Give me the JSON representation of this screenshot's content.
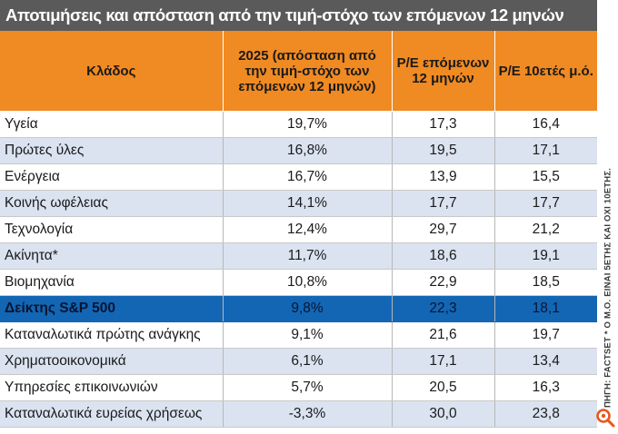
{
  "title": "Αποτιμήσεις και απόσταση από την τιμή-στόχο των επόμενων 12 μηνών",
  "headers": [
    "Κλάδος",
    "2025 (απόσταση από την τιμή-στόχο των επόμενων 12 μηνών)",
    "P/E επόμενων 12 μηνών",
    "P/E 10ετές μ.ό."
  ],
  "rows": [
    {
      "sector": "Υγεία",
      "distance": "19,7%",
      "pe_next": "17,3",
      "pe_avg": "16,4"
    },
    {
      "sector": "Πρώτες ύλες",
      "distance": "16,8%",
      "pe_next": "19,5",
      "pe_avg": "17,1"
    },
    {
      "sector": "Ενέργεια",
      "distance": "16,7%",
      "pe_next": "13,9",
      "pe_avg": "15,5"
    },
    {
      "sector": "Κοινής ωφέλειας",
      "distance": "14,1%",
      "pe_next": "17,7",
      "pe_avg": "17,7"
    },
    {
      "sector": "Τεχνολογία",
      "distance": "12,4%",
      "pe_next": "29,7",
      "pe_avg": "21,2"
    },
    {
      "sector": "Ακίνητα*",
      "distance": "11,7%",
      "pe_next": "18,6",
      "pe_avg": "19,1"
    },
    {
      "sector": "Βιομηχανία",
      "distance": "10,8%",
      "pe_next": "22,9",
      "pe_avg": "18,5"
    },
    {
      "sector": "Δείκτης S&P 500",
      "distance": "9,8%",
      "pe_next": "22,3",
      "pe_avg": "18,1"
    },
    {
      "sector": "Καταναλωτικά πρώτης ανάγκης",
      "distance": "9,1%",
      "pe_next": "21,6",
      "pe_avg": "19,7"
    },
    {
      "sector": "Χρηματοοικονομικά",
      "distance": "6,1%",
      "pe_next": "17,1",
      "pe_avg": "13,4"
    },
    {
      "sector": "Υπηρεσίες επικοινωνιών",
      "distance": "5,7%",
      "pe_next": "20,5",
      "pe_avg": "16,3"
    },
    {
      "sector": "Καταναλωτικά ευρείας χρήσεως",
      "distance": "-3,3%",
      "pe_next": "30,0",
      "pe_avg": "23,8"
    }
  ],
  "highlight_row_index": 7,
  "source_note": "ΠΗΓΗ: FACTSET * Ο Μ.Ο. ΕΙΝΑΙ 5ΕΤΗΣ ΚΑΙ ΟΧΙ 10ΕΤΗΣ.",
  "colors": {
    "title_bg": "#5a5a5a",
    "header_bg": "#f08a22",
    "row_alt_bg": "#dbe3f1",
    "highlight_bg": "#1366b4",
    "logo": "#e8581c"
  },
  "logo_icon": "magnifier-logo-icon"
}
